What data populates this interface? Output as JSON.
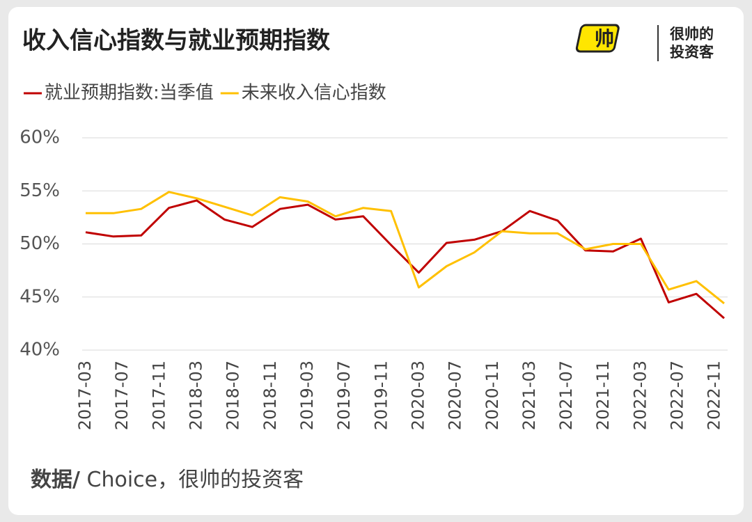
{
  "chart_data": {
    "type": "line",
    "title": "收入信心指数与就业预期指数",
    "brand": {
      "icon": "帅",
      "line1": "很帅的",
      "line2": "投资客"
    },
    "source": {
      "label": "数据/",
      "text": " Choice，很帅的投资客"
    },
    "x": [
      "2017-03",
      "2017-06",
      "2017-09",
      "2017-12",
      "2018-03",
      "2018-06",
      "2018-09",
      "2018-12",
      "2019-03",
      "2019-06",
      "2019-09",
      "2019-12",
      "2020-03",
      "2020-06",
      "2020-09",
      "2020-12",
      "2021-03",
      "2021-06",
      "2021-09",
      "2021-12",
      "2022-03",
      "2022-06",
      "2022-09",
      "2022-12"
    ],
    "series": [
      {
        "name": "就业预期指数:当季值",
        "color": "#c00000",
        "values": [
          51.1,
          50.7,
          50.8,
          53.4,
          54.1,
          52.3,
          51.6,
          53.3,
          53.7,
          52.3,
          52.6,
          49.9,
          47.3,
          50.1,
          50.4,
          51.2,
          53.1,
          52.2,
          49.4,
          49.3,
          50.5,
          44.5,
          45.3,
          43.0
        ]
      },
      {
        "name": "未来收入信心指数",
        "color": "#ffc000",
        "values": [
          52.9,
          52.9,
          53.3,
          54.9,
          54.3,
          53.5,
          52.7,
          54.4,
          54.0,
          52.6,
          53.4,
          53.1,
          45.9,
          47.9,
          49.2,
          51.2,
          51.0,
          51.0,
          49.5,
          50.0,
          50.0,
          45.7,
          46.5,
          44.4
        ]
      }
    ],
    "xticks": [
      "2017-03",
      "2017-07",
      "2017-11",
      "2018-03",
      "2018-07",
      "2018-11",
      "2019-03",
      "2019-07",
      "2019-11",
      "2020-03",
      "2020-07",
      "2020-11",
      "2021-03",
      "2021-07",
      "2021-11",
      "2022-03",
      "2022-07",
      "2022-11"
    ],
    "xlim": [
      "2017-03",
      "2022-12"
    ],
    "ylim": [
      40,
      60
    ],
    "yticks": [
      {
        "value": 40,
        "label": "40%"
      },
      {
        "value": 45,
        "label": "45%"
      },
      {
        "value": 50,
        "label": "50%"
      },
      {
        "value": 55,
        "label": "55%"
      },
      {
        "value": 60,
        "label": "60%"
      }
    ],
    "grid": true
  }
}
